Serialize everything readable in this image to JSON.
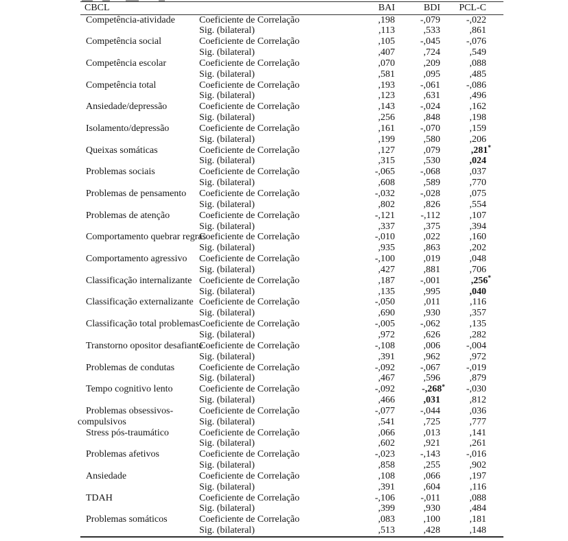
{
  "colors": {
    "text": "#161616",
    "rule": "#2e2e2e",
    "background": "#ffffff"
  },
  "table": {
    "corner_header": "CBCL",
    "measure_headers": [
      "BAI",
      "BDI",
      "PCL-C"
    ],
    "stat_row_labels": {
      "coef": "Coeficiente de Correlação",
      "sig": "Sig. (bilateral)"
    },
    "rows": [
      {
        "label_lines": [
          "Competência-atividade"
        ],
        "coef": [
          ",198",
          "-,079",
          "-,022"
        ],
        "sig": [
          ",113",
          ",533",
          ",861"
        ]
      },
      {
        "label_lines": [
          "Competência social"
        ],
        "coef": [
          ",105",
          "-,045",
          "-,076"
        ],
        "sig": [
          ",407",
          ",724",
          ",549"
        ]
      },
      {
        "label_lines": [
          "Competência escolar"
        ],
        "coef": [
          ",070",
          ",209",
          ",088"
        ],
        "sig": [
          ",581",
          ",095",
          ",485"
        ]
      },
      {
        "label_lines": [
          "Competência total"
        ],
        "coef": [
          ",193",
          "-,061",
          "-,086"
        ],
        "sig": [
          ",123",
          ",631",
          ",496"
        ]
      },
      {
        "label_lines": [
          "Ansiedade/depressão"
        ],
        "coef": [
          ",143",
          "-,024",
          ",162"
        ],
        "sig": [
          ",256",
          ",848",
          ",198"
        ]
      },
      {
        "label_lines": [
          "Isolamento/depressão"
        ],
        "coef": [
          ",161",
          "-,070",
          ",159"
        ],
        "sig": [
          ",199",
          ",580",
          ",206"
        ]
      },
      {
        "label_lines": [
          "Queixas somáticas"
        ],
        "coef": [
          ",127",
          ",079",
          ",281*"
        ],
        "sig": [
          ",315",
          ",530",
          ",024"
        ],
        "bold_coef": [
          2
        ],
        "bold_sig": [
          2
        ]
      },
      {
        "label_lines": [
          "Problemas sociais"
        ],
        "coef": [
          "-,065",
          "-,068",
          ",037"
        ],
        "sig": [
          ",608",
          ",589",
          ",770"
        ]
      },
      {
        "label_lines": [
          "Problemas de pensamento"
        ],
        "coef": [
          "-,032",
          "-,028",
          ",075"
        ],
        "sig": [
          ",802",
          ",826",
          ",554"
        ]
      },
      {
        "label_lines": [
          "Problemas de atenção"
        ],
        "coef": [
          "-,121",
          "-,112",
          ",107"
        ],
        "sig": [
          ",337",
          ",375",
          ",394"
        ]
      },
      {
        "label_lines": [
          "Comportamento quebrar regras"
        ],
        "coef": [
          "-,010",
          ",022",
          ",160"
        ],
        "sig": [
          ",935",
          ",863",
          ",202"
        ]
      },
      {
        "label_lines": [
          "Comportamento agressivo"
        ],
        "coef": [
          "-,100",
          ",019",
          ",048"
        ],
        "sig": [
          ",427",
          ",881",
          ",706"
        ]
      },
      {
        "label_lines": [
          "Classificação internalizante"
        ],
        "coef": [
          ",187",
          "-,001",
          ",256*"
        ],
        "sig": [
          ",135",
          ",995",
          ",040"
        ],
        "bold_coef": [
          2
        ],
        "bold_sig": [
          2
        ]
      },
      {
        "label_lines": [
          "Classificação externalizante"
        ],
        "coef": [
          "-,050",
          ",011",
          ",116"
        ],
        "sig": [
          ",690",
          ",930",
          ",357"
        ]
      },
      {
        "label_lines": [
          "Classificação total problemas"
        ],
        "coef": [
          "-,005",
          "-,062",
          ",135"
        ],
        "sig": [
          ",972",
          ",626",
          ",282"
        ]
      },
      {
        "label_lines": [
          "Transtorno opositor desafiante"
        ],
        "coef": [
          "-,108",
          ",006",
          "-,004"
        ],
        "sig": [
          ",391",
          ",962",
          ",972"
        ]
      },
      {
        "label_lines": [
          "Problemas de condutas"
        ],
        "coef": [
          "-,092",
          "-,067",
          "-,019"
        ],
        "sig": [
          ",467",
          ",596",
          ",879"
        ]
      },
      {
        "label_lines": [
          "Tempo cognitivo lento"
        ],
        "coef": [
          "-,092",
          "-,268*",
          "-,030"
        ],
        "sig": [
          ",466",
          ",031",
          ",812"
        ],
        "bold_coef": [
          1
        ],
        "bold_sig": [
          1
        ]
      },
      {
        "label_lines": [
          "Problemas obsessivos-",
          "compulsivos"
        ],
        "coef": [
          "-,077",
          "-,044",
          ",036"
        ],
        "sig": [
          ",541",
          ",725",
          ",777"
        ]
      },
      {
        "label_lines": [
          "Stress pós-traumático"
        ],
        "coef": [
          ",066",
          ",013",
          ",141"
        ],
        "sig": [
          ",602",
          ",921",
          ",261"
        ]
      },
      {
        "label_lines": [
          "Problemas afetivos"
        ],
        "coef": [
          "-,023",
          "-,143",
          "-,016"
        ],
        "sig": [
          ",858",
          ",255",
          ",902"
        ]
      },
      {
        "label_lines": [
          "Ansiedade"
        ],
        "coef": [
          ",108",
          ",066",
          ",197"
        ],
        "sig": [
          ",391",
          ",604",
          ",116"
        ]
      },
      {
        "label_lines": [
          "TDAH"
        ],
        "coef": [
          "-,106",
          "-,011",
          ",088"
        ],
        "sig": [
          ",399",
          ",930",
          ",484"
        ]
      },
      {
        "label_lines": [
          "Problemas somáticos"
        ],
        "coef": [
          ",083",
          ",100",
          ",181"
        ],
        "sig": [
          ",513",
          ",428",
          ",148"
        ]
      }
    ]
  }
}
